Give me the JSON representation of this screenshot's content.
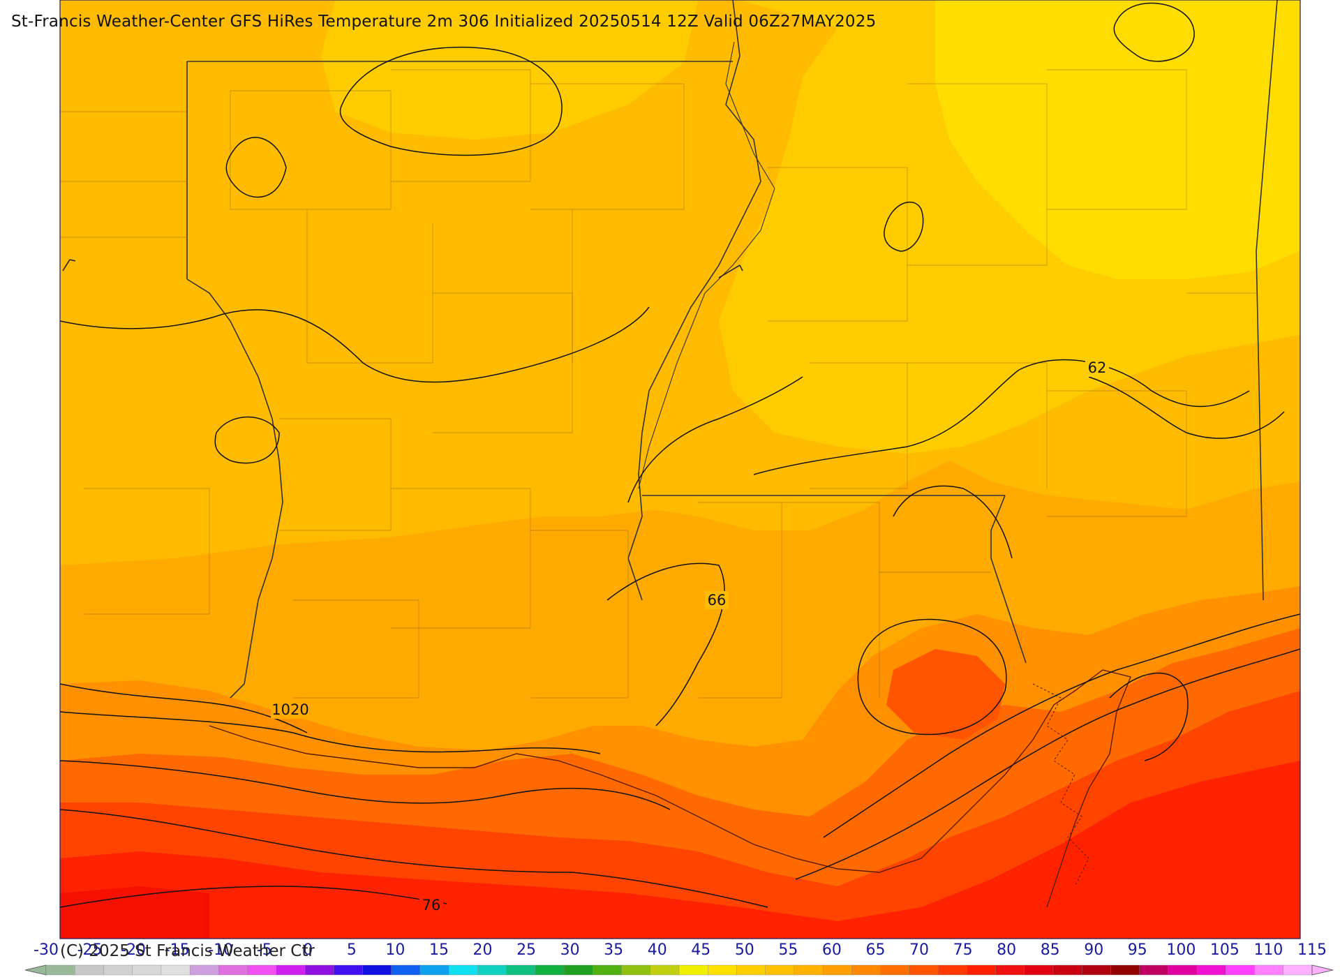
{
  "title": "St-Francis Weather-Center GFS HiRes Temperature 2m  306 Initialized 20250514 12Z Valid 06Z27MAY2025",
  "copyright": "(C) 2025 St Francis Weather Ctr",
  "contour_labels": [
    {
      "text": "62",
      "label_for": "temperature isotherm"
    },
    {
      "text": "66",
      "label_for": "temperature isotherm"
    },
    {
      "text": "76",
      "label_for": "temperature isotherm"
    },
    {
      "text": "1020",
      "label_for": "sea level pressure isobar"
    }
  ],
  "colorbar": {
    "tick_labels": [
      "-30",
      "-25",
      "-20",
      "-15",
      "-10",
      "-5",
      "0",
      "5",
      "10",
      "15",
      "20",
      "25",
      "30",
      "35",
      "40",
      "45",
      "50",
      "55",
      "60",
      "65",
      "70",
      "75",
      "80",
      "85",
      "90",
      "95",
      "100",
      "105",
      "110",
      "115"
    ],
    "colors": [
      "#9ab89a",
      "#c8c8c8",
      "#d0d0d0",
      "#d8d8d8",
      "#e0e0e0",
      "#cfa0e0",
      "#e070e0",
      "#f050f0",
      "#d020f0",
      "#9010e0",
      "#4010f0",
      "#1010e0",
      "#1060f0",
      "#10a0f0",
      "#10e0f0",
      "#10d0c0",
      "#10c080",
      "#10b040",
      "#20a020",
      "#50b010",
      "#90c010",
      "#c0d010",
      "#f0f000",
      "#ffe000",
      "#ffd000",
      "#ffc000",
      "#ffb000",
      "#ffa000",
      "#ff8800",
      "#ff7000",
      "#ff5500",
      "#ff3a00",
      "#ff2000",
      "#f01010",
      "#e00010",
      "#c80010",
      "#b00010",
      "#900000",
      "#c00060",
      "#e000a0",
      "#f010d0",
      "#ff40ff",
      "#ff80ff",
      "#ffb0ff"
    ]
  }
}
